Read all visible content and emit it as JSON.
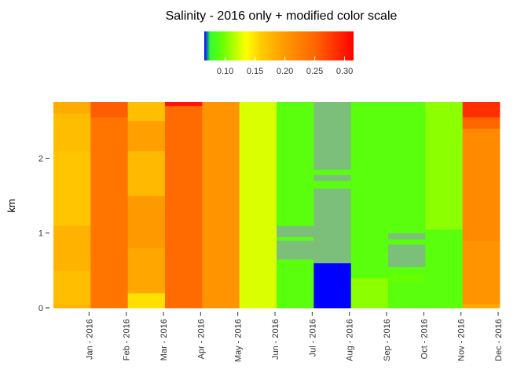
{
  "chart_data": {
    "type": "heatmap",
    "title": "Salinity - 2016 only + modified color scale",
    "xlabel": "",
    "ylabel": "km",
    "ylim": [
      0,
      2.75
    ],
    "yticks": [
      0,
      1,
      2
    ],
    "grid": false,
    "legend_placement": "top-center",
    "months": [
      "Jan - 2016",
      "Feb - 2016",
      "Mar - 2016",
      "Apr - 2016",
      "May - 2016",
      "Jun - 2016",
      "Jul - 2016",
      "Aug - 2016",
      "Sep - 2016",
      "Oct - 2016",
      "Nov - 2016",
      "Dec - 2016"
    ],
    "color_scale": {
      "ticks": [
        0.1,
        0.15,
        0.2,
        0.25,
        0.3
      ],
      "tick_labels": [
        "0.10",
        "0.15",
        "0.20",
        "0.25",
        "0.30"
      ],
      "min": 0.065,
      "max": 0.315,
      "stops": [
        {
          "value": 0.065,
          "color": "#0000ff"
        },
        {
          "value": 0.075,
          "color": "#33ff33"
        },
        {
          "value": 0.095,
          "color": "#66ff00"
        },
        {
          "value": 0.135,
          "color": "#ffff00"
        },
        {
          "value": 0.16,
          "color": "#ffcc00"
        },
        {
          "value": 0.2,
          "color": "#ff9900"
        },
        {
          "value": 0.25,
          "color": "#ff6600"
        },
        {
          "value": 0.315,
          "color": "#ff0000"
        }
      ]
    },
    "columns": [
      {
        "month": "Jan - 2016",
        "segments": [
          {
            "from": 0.0,
            "to": 0.05,
            "value": 0.18
          },
          {
            "from": 0.05,
            "to": 0.5,
            "value": 0.17
          },
          {
            "from": 0.5,
            "to": 1.1,
            "value": 0.18
          },
          {
            "from": 1.1,
            "to": 2.1,
            "value": 0.165
          },
          {
            "from": 2.1,
            "to": 2.6,
            "value": 0.172
          },
          {
            "from": 2.6,
            "to": 2.75,
            "value": 0.185
          }
        ]
      },
      {
        "month": "Feb - 2016",
        "segments": [
          {
            "from": 0.0,
            "to": 2.55,
            "value": 0.235
          },
          {
            "from": 2.55,
            "to": 2.75,
            "value": 0.255
          }
        ]
      },
      {
        "month": "Mar - 2016",
        "segments": [
          {
            "from": 0.0,
            "to": 0.2,
            "value": 0.15
          },
          {
            "from": 0.2,
            "to": 0.8,
            "value": 0.19
          },
          {
            "from": 0.8,
            "to": 1.5,
            "value": 0.2
          },
          {
            "from": 1.5,
            "to": 2.1,
            "value": 0.175
          },
          {
            "from": 2.1,
            "to": 2.5,
            "value": 0.195
          },
          {
            "from": 2.5,
            "to": 2.75,
            "value": 0.17
          }
        ]
      },
      {
        "month": "Apr - 2016",
        "segments": [
          {
            "from": 0.0,
            "to": 2.7,
            "value": 0.245
          },
          {
            "from": 2.7,
            "to": 2.75,
            "value": 0.3
          }
        ]
      },
      {
        "month": "May - 2016",
        "segments": [
          {
            "from": 0.0,
            "to": 2.75,
            "value": 0.205
          }
        ]
      },
      {
        "month": "Jun - 2016",
        "segments": [
          {
            "from": 0.0,
            "to": 2.75,
            "value": 0.125
          }
        ]
      },
      {
        "month": "Jul - 2016",
        "segments": [
          {
            "from": 0.0,
            "to": 0.65,
            "value": 0.09
          },
          {
            "from": 0.65,
            "to": 0.9,
            "value": null
          },
          {
            "from": 0.9,
            "to": 0.95,
            "value": 0.09
          },
          {
            "from": 0.95,
            "to": 1.1,
            "value": null
          },
          {
            "from": 1.1,
            "to": 2.75,
            "value": 0.09
          }
        ]
      },
      {
        "month": "Aug - 2016",
        "segments": [
          {
            "from": 0.0,
            "to": 0.6,
            "value": 0.065
          },
          {
            "from": 0.6,
            "to": 0.65,
            "value": null
          },
          {
            "from": 0.65,
            "to": 1.6,
            "value": null
          },
          {
            "from": 1.6,
            "to": 1.7,
            "value": 0.09
          },
          {
            "from": 1.7,
            "to": 1.78,
            "value": null
          },
          {
            "from": 1.78,
            "to": 1.85,
            "value": 0.09
          },
          {
            "from": 1.85,
            "to": 2.75,
            "value": null
          }
        ]
      },
      {
        "month": "Sep - 2016",
        "segments": [
          {
            "from": 0.0,
            "to": 0.4,
            "value": 0.105
          },
          {
            "from": 0.4,
            "to": 2.75,
            "value": 0.09
          }
        ]
      },
      {
        "month": "Oct - 2016",
        "segments": [
          {
            "from": 0.0,
            "to": 0.35,
            "value": 0.09
          },
          {
            "from": 0.35,
            "to": 0.45,
            "value": 0.095
          },
          {
            "from": 0.45,
            "to": 0.55,
            "value": 0.09
          },
          {
            "from": 0.55,
            "to": 0.85,
            "value": null
          },
          {
            "from": 0.85,
            "to": 0.92,
            "value": 0.09
          },
          {
            "from": 0.92,
            "to": 1.0,
            "value": null
          },
          {
            "from": 1.0,
            "to": 2.75,
            "value": 0.09
          }
        ]
      },
      {
        "month": "Nov - 2016",
        "segments": [
          {
            "from": 0.0,
            "to": 1.05,
            "value": 0.09
          },
          {
            "from": 1.05,
            "to": 2.75,
            "value": 0.105
          }
        ]
      },
      {
        "month": "Dec - 2016",
        "segments": [
          {
            "from": 0.0,
            "to": 0.05,
            "value": 0.185
          },
          {
            "from": 0.05,
            "to": 0.9,
            "value": 0.205
          },
          {
            "from": 0.9,
            "to": 2.4,
            "value": 0.215
          },
          {
            "from": 2.4,
            "to": 2.55,
            "value": 0.25
          },
          {
            "from": 2.55,
            "to": 2.75,
            "value": 0.285
          }
        ]
      }
    ]
  },
  "colors": {
    "missing": "#7bbf7b",
    "missing_boundary": "#8a8fb0"
  }
}
